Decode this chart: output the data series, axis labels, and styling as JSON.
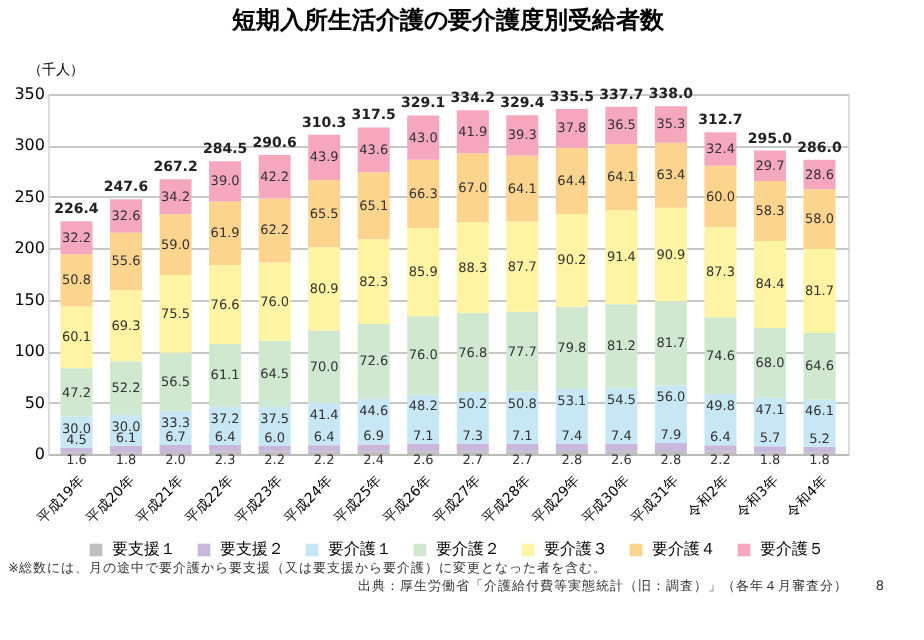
{
  "chart_data": {
    "type": "bar",
    "stacked": true,
    "title": "短期入所生活介護の要介護度別受給者数",
    "ylabel": "（千人）",
    "categories": [
      "平成19年",
      "平成20年",
      "平成21年",
      "平成22年",
      "平成23年",
      "平成24年",
      "平成25年",
      "平成26年",
      "平成27年",
      "平成28年",
      "平成29年",
      "平成30年",
      "平成31年",
      "令和2年",
      "令和3年",
      "令和4年"
    ],
    "series": [
      {
        "name": "要支援１",
        "color": "#bfbfbf",
        "values": [
          1.6,
          1.8,
          2.0,
          2.3,
          2.2,
          2.2,
          2.4,
          2.6,
          2.7,
          2.7,
          2.8,
          2.6,
          2.8,
          2.2,
          1.8,
          1.8
        ],
        "value_labels": [
          "1.6",
          "1.8",
          "2.0",
          "2.3",
          "2.2",
          "2.2",
          "2.4",
          "2.6",
          "2.7",
          "2.7",
          "2.8",
          "2.6",
          "2.8",
          "2.2",
          "1.8",
          "1.8"
        ]
      },
      {
        "name": "要支援２",
        "color": "#c9b8dc",
        "values": [
          4.5,
          6.1,
          6.7,
          6.4,
          6.0,
          6.4,
          6.9,
          7.1,
          7.3,
          7.1,
          7.4,
          7.4,
          7.9,
          6.4,
          5.7,
          5.2
        ],
        "value_labels": [
          "4.5",
          "6.1",
          "6.7",
          "6.4",
          "6.0",
          "6.4",
          "6.9",
          "7.1",
          "7.3",
          "7.1",
          "7.4",
          "7.4",
          "7.9",
          "6.4",
          "5.7",
          "5.2"
        ]
      },
      {
        "name": "要介護１",
        "color": "#c6e7f3",
        "values": [
          30.0,
          30.0,
          33.3,
          37.2,
          37.5,
          41.4,
          44.6,
          48.2,
          50.2,
          50.8,
          53.1,
          54.5,
          56.0,
          49.8,
          47.1,
          46.1
        ],
        "value_labels": [
          "30.0",
          "30.0",
          "33.3",
          "37.2",
          "37.5",
          "41.4",
          "44.6",
          "48.2",
          "50.2",
          "50.8",
          "53.1",
          "54.5",
          "56.0",
          "49.8",
          "47.1",
          "46.1"
        ]
      },
      {
        "name": "要介護２",
        "color": "#cfe8cf",
        "values": [
          47.2,
          52.2,
          56.5,
          61.1,
          64.5,
          70.0,
          72.6,
          76.0,
          76.8,
          77.7,
          79.8,
          81.2,
          81.7,
          74.6,
          68.0,
          64.6
        ],
        "value_labels": [
          "47.2",
          "52.2",
          "56.5",
          "61.1",
          "64.5",
          "70.0",
          "72.6",
          "76.0",
          "76.8",
          "77.7",
          "79.8",
          "81.2",
          "81.7",
          "74.6",
          "68.0",
          "64.6"
        ]
      },
      {
        "name": "要介護３",
        "color": "#fff4a3",
        "values": [
          60.1,
          69.3,
          75.5,
          76.6,
          76.0,
          80.9,
          82.3,
          85.9,
          88.3,
          87.7,
          90.2,
          91.4,
          90.9,
          87.3,
          84.4,
          81.7
        ],
        "value_labels": [
          "60.1",
          "69.3",
          "75.5",
          "76.6",
          "76.0",
          "80.9",
          "82.3",
          "85.9",
          "88.3",
          "87.7",
          "90.2",
          "91.4",
          "90.9",
          "87.3",
          "84.4",
          "81.7"
        ]
      },
      {
        "name": "要介護４",
        "color": "#fcd48e",
        "values": [
          50.8,
          55.6,
          59.0,
          61.9,
          62.2,
          65.5,
          65.1,
          66.3,
          67.0,
          64.1,
          64.4,
          64.1,
          63.4,
          60.0,
          58.3,
          58.0
        ],
        "value_labels": [
          "50.8",
          "55.6",
          "59.0",
          "61.9",
          "62.2",
          "65.5",
          "65.1",
          "66.3",
          "67.0",
          "64.1",
          "64.4",
          "64.1",
          "63.4",
          "60.0",
          "58.3",
          "58.0"
        ]
      },
      {
        "name": "要介護５",
        "color": "#f5a8bd",
        "values": [
          32.2,
          32.6,
          34.2,
          39.0,
          42.2,
          43.9,
          43.6,
          43.0,
          41.9,
          39.3,
          37.8,
          36.5,
          35.3,
          32.4,
          29.7,
          28.6
        ],
        "value_labels": [
          "32.2",
          "32.6",
          "34.2",
          "39.0",
          "42.2",
          "43.9",
          "43.6",
          "43.0",
          "41.9",
          "39.3",
          "37.8",
          "36.5",
          "35.3",
          "32.4",
          "29.7",
          "28.6"
        ]
      }
    ],
    "totals": [
      "226.4",
      "247.6",
      "267.2",
      "284.5",
      "290.6",
      "310.3",
      "317.5",
      "329.1",
      "334.2",
      "329.4",
      "335.5",
      "337.7",
      "338.0",
      "312.7",
      "295.0",
      "286.0"
    ],
    "ylim": [
      0,
      350
    ],
    "yticks": [
      0,
      50,
      100,
      150,
      200,
      250,
      300,
      350
    ],
    "grid": "y",
    "legend": "bottom",
    "annotations": [
      "※総数には、月の途中で要介護から要支援（又は要支援から要介護）に変更となった者を含む。",
      "出典：厚生労働省「介護給付費等実態統計（旧：調査）」（各年４月審査分）",
      "8"
    ]
  }
}
